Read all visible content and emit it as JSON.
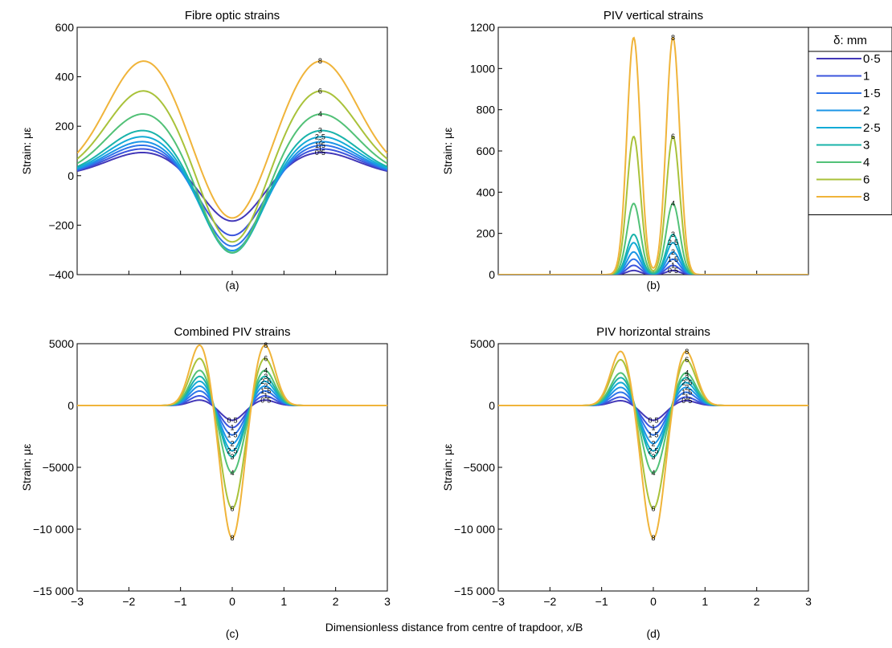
{
  "figure": {
    "common_xlabel": "Dimensionless distance from centre of trapdoor, x/B",
    "legend": {
      "title": "δ: mm",
      "entries": [
        "0·5",
        "1",
        "1·5",
        "2",
        "2·5",
        "3",
        "4",
        "6",
        "8"
      ],
      "placement": "right of panel (b)"
    }
  },
  "chart_data": [
    {
      "id": "a",
      "type": "line",
      "title": "Fibre optic strains",
      "panel_label": "(a)",
      "xlabel": "",
      "ylabel": "Strain: με",
      "xlim": [
        -3,
        3
      ],
      "ylim": [
        -400,
        600
      ],
      "xticks": [],
      "yticks": [
        -400,
        -200,
        0,
        200,
        400,
        600
      ],
      "ytick_labels": [
        "−400",
        "−200",
        "0",
        "200",
        "400",
        "600"
      ],
      "shape": "fibre",
      "label_positions": "right_peak",
      "series": [
        {
          "name": "0·5",
          "color": "#4338b8",
          "label": "0·5",
          "peak": 95,
          "trough": -195
        },
        {
          "name": "1",
          "color": "#3b54dc",
          "label": "1",
          "peak": 110,
          "trough": -255
        },
        {
          "name": "1·5",
          "color": "#2f74ea",
          "label": "1·5",
          "peak": 125,
          "trough": -300
        },
        {
          "name": "2",
          "color": "#1b95e6",
          "label": "2",
          "peak": 140,
          "trough": -320
        },
        {
          "name": "2·5",
          "color": "#13abd6",
          "label": "2·5",
          "peak": 160,
          "trough": -330
        },
        {
          "name": "3",
          "color": "#19b3aa",
          "label": "3",
          "peak": 185,
          "trough": -335
        },
        {
          "name": "4",
          "color": "#52c177",
          "label": "4",
          "peak": 252,
          "trough": -342
        },
        {
          "name": "6",
          "color": "#a9c23a",
          "label": "6",
          "peak": 345,
          "trough": -310
        },
        {
          "name": "8",
          "color": "#f0b43a",
          "label": "8",
          "peak": 465,
          "trough": -228
        }
      ]
    },
    {
      "id": "b",
      "type": "line",
      "title": "PIV vertical strains",
      "panel_label": "(b)",
      "xlabel": "",
      "ylabel": "Strain: με",
      "xlim": [
        -3,
        3
      ],
      "ylim": [
        0,
        1200
      ],
      "xticks": [],
      "yticks": [
        0,
        200,
        400,
        600,
        800,
        1000,
        1200
      ],
      "ytick_labels": [
        "0",
        "200",
        "400",
        "600",
        "800",
        "1000",
        "1200"
      ],
      "shape": "vertical",
      "label_positions": "right_peak",
      "series": [
        {
          "name": "0·5",
          "color": "#4338b8",
          "label": "0·5",
          "peak": 20
        },
        {
          "name": "1",
          "color": "#3b54dc",
          "label": "1",
          "peak": 45
        },
        {
          "name": "1·5",
          "color": "#2f74ea",
          "label": "1·5",
          "peak": 75
        },
        {
          "name": "2",
          "color": "#1b95e6",
          "label": "2",
          "peak": 110
        },
        {
          "name": "2·5",
          "color": "#13abd6",
          "label": "2·5",
          "peak": 155
        },
        {
          "name": "3",
          "color": "#19b3aa",
          "label": "3",
          "peak": 195
        },
        {
          "name": "4",
          "color": "#52c177",
          "label": "4",
          "peak": 345
        },
        {
          "name": "6",
          "color": "#a9c23a",
          "label": "6",
          "peak": 670
        },
        {
          "name": "8",
          "color": "#f0b43a",
          "label": "8",
          "peak": 1150
        }
      ]
    },
    {
      "id": "c",
      "type": "line",
      "title": "Combined PIV strains",
      "panel_label": "(c)",
      "xlabel": "",
      "ylabel": "Strain: με",
      "xlim": [
        -3,
        3
      ],
      "ylim": [
        -15000,
        5000
      ],
      "xticks": [
        -3,
        -2,
        -1,
        0,
        1,
        2,
        3
      ],
      "xtick_labels": [
        "−3",
        "−2",
        "−1",
        "0",
        "1",
        "2",
        "3"
      ],
      "yticks": [
        -15000,
        -10000,
        -5000,
        0,
        5000
      ],
      "ytick_labels": [
        "−15 000",
        "−10 000",
        "−5000",
        "0",
        "5000"
      ],
      "shape": "horizontal",
      "label_positions": "right_peak_and_trough",
      "series": [
        {
          "name": "0·5",
          "color": "#4338b8",
          "label": "0·5",
          "peak": 450,
          "trough": -1200
        },
        {
          "name": "1",
          "color": "#3b54dc",
          "label": "1",
          "peak": 800,
          "trough": -1800
        },
        {
          "name": "1·5",
          "color": "#2f74ea",
          "label": "1·5",
          "peak": 1200,
          "trough": -2400
        },
        {
          "name": "2",
          "color": "#1b95e6",
          "label": "2",
          "peak": 1600,
          "trough": -3100
        },
        {
          "name": "2·5",
          "color": "#13abd6",
          "label": "2·5",
          "peak": 2000,
          "trough": -3700
        },
        {
          "name": "3",
          "color": "#19b3aa",
          "label": "3",
          "peak": 2400,
          "trough": -4200
        },
        {
          "name": "4",
          "color": "#52c177",
          "label": "4",
          "peak": 2900,
          "trough": -5500
        },
        {
          "name": "6",
          "color": "#a9c23a",
          "label": "6",
          "peak": 3900,
          "trough": -8400
        },
        {
          "name": "8",
          "color": "#f0b43a",
          "label": "8",
          "peak": 5000,
          "trough": -10800
        }
      ]
    },
    {
      "id": "d",
      "type": "line",
      "title": "PIV horizontal strains",
      "panel_label": "(d)",
      "xlabel": "",
      "ylabel": "Strain: με",
      "xlim": [
        -3,
        3
      ],
      "ylim": [
        -15000,
        5000
      ],
      "xticks": [
        -3,
        -2,
        -1,
        0,
        1,
        2,
        3
      ],
      "xtick_labels": [
        "−3",
        "−2",
        "−1",
        "0",
        "1",
        "2",
        "3"
      ],
      "yticks": [
        -15000,
        -10000,
        -5000,
        0,
        5000
      ],
      "ytick_labels": [
        "−15 000",
        "−10 000",
        "−5000",
        "0",
        "5000"
      ],
      "shape": "horizontal",
      "label_positions": "right_peak_and_trough",
      "series": [
        {
          "name": "0·5",
          "color": "#4338b8",
          "label": "0·5",
          "peak": 400,
          "trough": -1200
        },
        {
          "name": "1",
          "color": "#3b54dc",
          "label": "1",
          "peak": 700,
          "trough": -1800
        },
        {
          "name": "1·5",
          "color": "#2f74ea",
          "label": "1·5",
          "peak": 1100,
          "trough": -2400
        },
        {
          "name": "2",
          "color": "#1b95e6",
          "label": "2",
          "peak": 1500,
          "trough": -3100
        },
        {
          "name": "2·5",
          "color": "#13abd6",
          "label": "2·5",
          "peak": 1900,
          "trough": -3700
        },
        {
          "name": "3",
          "color": "#19b3aa",
          "label": "3",
          "peak": 2300,
          "trough": -4200
        },
        {
          "name": "4",
          "color": "#52c177",
          "label": "4",
          "peak": 2700,
          "trough": -5500
        },
        {
          "name": "6",
          "color": "#a9c23a",
          "label": "6",
          "peak": 3800,
          "trough": -8400
        },
        {
          "name": "8",
          "color": "#f0b43a",
          "label": "8",
          "peak": 4500,
          "trough": -10800
        }
      ]
    }
  ]
}
